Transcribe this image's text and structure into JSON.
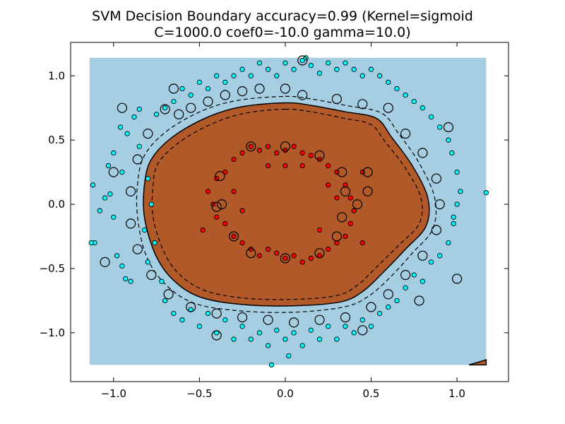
{
  "chart_data": {
    "type": "scatter",
    "title": "SVM Decision Boundary accuracy=0.99 (Kernel=sigmoid",
    "subtitle": "C=1000.0 coef0=-10.0 gamma=10.0)",
    "xlabel": "",
    "ylabel": "",
    "xlim": [
      -1.25,
      1.3
    ],
    "ylim": [
      -1.38,
      1.26
    ],
    "xticks": [
      -1.0,
      -0.5,
      0.0,
      0.5,
      1.0
    ],
    "xtick_labels": [
      "−1.0",
      "−0.5",
      "0.0",
      "0.5",
      "1.0"
    ],
    "yticks": [
      1.0,
      0.5,
      0.0,
      -0.5,
      -1.0
    ],
    "ytick_labels": [
      "1.0",
      "0.5",
      "0.0",
      "−0.5",
      "−1.0"
    ],
    "grid": false,
    "legend": "none",
    "background_extent": {
      "x": [
        -1.14,
        1.17
      ],
      "y": [
        -1.25,
        1.14
      ]
    },
    "colors": {
      "outer_class_region": "#a6cee3",
      "inner_class_region": "#b15928",
      "outer_points": "#00ffff",
      "inner_points": "#ff0000",
      "boundary": "#000000"
    },
    "decision_boundary": [
      [
        0.0,
        0.79
      ],
      [
        0.15,
        0.77
      ],
      [
        0.35,
        0.72
      ],
      [
        0.53,
        0.67
      ],
      [
        0.62,
        0.52
      ],
      [
        0.74,
        0.3
      ],
      [
        0.83,
        0.05
      ],
      [
        0.82,
        -0.17
      ],
      [
        0.7,
        -0.35
      ],
      [
        0.57,
        -0.53
      ],
      [
        0.45,
        -0.68
      ],
      [
        0.32,
        -0.76
      ],
      [
        0.05,
        -0.79
      ],
      [
        -0.25,
        -0.78
      ],
      [
        -0.5,
        -0.72
      ],
      [
        -0.66,
        -0.58
      ],
      [
        -0.76,
        -0.38
      ],
      [
        -0.82,
        -0.1
      ],
      [
        -0.82,
        0.15
      ],
      [
        -0.78,
        0.35
      ],
      [
        -0.65,
        0.53
      ],
      [
        -0.45,
        0.68
      ],
      [
        -0.25,
        0.76
      ]
    ],
    "margin_outer": [
      [
        0.0,
        0.84
      ],
      [
        0.15,
        0.82
      ],
      [
        0.35,
        0.77
      ],
      [
        0.56,
        0.71
      ],
      [
        0.66,
        0.55
      ],
      [
        0.78,
        0.32
      ],
      [
        0.87,
        0.05
      ],
      [
        0.86,
        -0.19
      ],
      [
        0.74,
        -0.38
      ],
      [
        0.61,
        -0.57
      ],
      [
        0.48,
        -0.72
      ],
      [
        0.34,
        -0.8
      ],
      [
        0.05,
        -0.84
      ],
      [
        -0.26,
        -0.83
      ],
      [
        -0.53,
        -0.77
      ],
      [
        -0.7,
        -0.62
      ],
      [
        -0.81,
        -0.4
      ],
      [
        -0.86,
        -0.1
      ],
      [
        -0.86,
        0.16
      ],
      [
        -0.82,
        0.38
      ],
      [
        -0.69,
        0.57
      ],
      [
        -0.48,
        0.73
      ],
      [
        -0.27,
        0.81
      ]
    ],
    "margin_inner": [
      [
        0.0,
        0.74
      ],
      [
        0.15,
        0.72
      ],
      [
        0.34,
        0.67
      ],
      [
        0.5,
        0.62
      ],
      [
        0.58,
        0.49
      ],
      [
        0.7,
        0.28
      ],
      [
        0.79,
        0.05
      ],
      [
        0.78,
        -0.15
      ],
      [
        0.66,
        -0.32
      ],
      [
        0.53,
        -0.49
      ],
      [
        0.42,
        -0.63
      ],
      [
        0.3,
        -0.71
      ],
      [
        0.05,
        -0.74
      ],
      [
        -0.24,
        -0.73
      ],
      [
        -0.47,
        -0.67
      ],
      [
        -0.62,
        -0.54
      ],
      [
        -0.71,
        -0.36
      ],
      [
        -0.77,
        -0.1
      ],
      [
        -0.77,
        0.14
      ],
      [
        -0.74,
        0.32
      ],
      [
        -0.61,
        0.49
      ],
      [
        -0.42,
        0.63
      ],
      [
        -0.23,
        0.71
      ]
    ],
    "corner_region": [
      [
        1.07,
        -1.25
      ],
      [
        1.17,
        -1.21
      ],
      [
        1.17,
        -1.25
      ]
    ],
    "series": [
      {
        "class": "outer",
        "points": [
          [
            -1.12,
            0.15
          ],
          [
            -1.11,
            -0.3
          ],
          [
            -1.08,
            -0.05
          ],
          [
            -1.05,
            0.05
          ],
          [
            -1.02,
            0.08
          ],
          [
            -1.0,
            -0.1
          ],
          [
            -1.03,
            0.3
          ],
          [
            -1.0,
            0.4
          ],
          [
            -0.98,
            -0.4
          ],
          [
            -0.95,
            -0.48
          ],
          [
            -0.93,
            -0.58
          ],
          [
            -0.9,
            -0.6
          ],
          [
            -0.96,
            0.6
          ],
          [
            -0.92,
            0.55
          ],
          [
            -0.88,
            0.68
          ],
          [
            -0.85,
            0.74
          ],
          [
            -0.85,
            0.45
          ],
          [
            -0.8,
            0.2
          ],
          [
            -0.78,
            0.0
          ],
          [
            -0.82,
            -0.2
          ],
          [
            -0.76,
            -0.3
          ],
          [
            -0.8,
            -0.45
          ],
          [
            -0.72,
            -0.6
          ],
          [
            -0.7,
            -0.75
          ],
          [
            -0.65,
            -0.85
          ],
          [
            -0.6,
            -0.9
          ],
          [
            -0.55,
            -0.82
          ],
          [
            -0.5,
            -0.95
          ],
          [
            -0.45,
            -0.85
          ],
          [
            -0.4,
            -1.0
          ],
          [
            -0.35,
            -0.9
          ],
          [
            -0.3,
            -1.05
          ],
          [
            -0.25,
            -0.95
          ],
          [
            -0.2,
            -1.05
          ],
          [
            -0.15,
            -1.0
          ],
          [
            -0.1,
            -1.1
          ],
          [
            -0.05,
            -0.98
          ],
          [
            0.0,
            -1.05
          ],
          [
            0.05,
            -1.0
          ],
          [
            0.1,
            -1.1
          ],
          [
            0.15,
            -0.98
          ],
          [
            0.2,
            -1.05
          ],
          [
            0.25,
            -0.95
          ],
          [
            0.3,
            -1.05
          ],
          [
            0.35,
            -0.95
          ],
          [
            0.4,
            -1.0
          ],
          [
            0.45,
            -0.9
          ],
          [
            0.5,
            -0.95
          ],
          [
            0.55,
            -0.85
          ],
          [
            0.6,
            -0.8
          ],
          [
            0.65,
            -0.75
          ],
          [
            0.7,
            -0.65
          ],
          [
            0.75,
            -0.55
          ],
          [
            0.8,
            -0.6
          ],
          [
            0.85,
            -0.45
          ],
          [
            0.9,
            -0.4
          ],
          [
            0.95,
            -0.3
          ],
          [
            0.98,
            -0.15
          ],
          [
            1.0,
            0.0
          ],
          [
            1.02,
            0.1
          ],
          [
            1.0,
            0.25
          ],
          [
            0.97,
            0.4
          ],
          [
            0.95,
            0.5
          ],
          [
            0.9,
            0.6
          ],
          [
            0.85,
            0.68
          ],
          [
            0.8,
            0.75
          ],
          [
            0.75,
            0.8
          ],
          [
            0.7,
            0.85
          ],
          [
            0.65,
            0.9
          ],
          [
            0.6,
            0.95
          ],
          [
            0.55,
            1.0
          ],
          [
            0.5,
            1.05
          ],
          [
            0.45,
            1.0
          ],
          [
            0.4,
            1.05
          ],
          [
            0.35,
            1.1
          ],
          [
            0.3,
            1.05
          ],
          [
            0.25,
            1.1
          ],
          [
            0.2,
            1.02
          ],
          [
            0.15,
            1.08
          ],
          [
            0.1,
            1.12
          ],
          [
            0.05,
            1.05
          ],
          [
            0.0,
            1.1
          ],
          [
            -0.05,
            1.0
          ],
          [
            -0.1,
            1.05
          ],
          [
            -0.15,
            1.1
          ],
          [
            -0.2,
            1.0
          ],
          [
            -0.25,
            1.05
          ],
          [
            -0.3,
            1.0
          ],
          [
            -0.35,
            0.95
          ],
          [
            -0.4,
            1.0
          ],
          [
            -0.45,
            0.9
          ],
          [
            -0.5,
            0.95
          ],
          [
            -0.55,
            0.85
          ],
          [
            -0.6,
            0.9
          ],
          [
            -0.65,
            0.8
          ],
          [
            -0.7,
            0.75
          ],
          [
            -0.75,
            0.7
          ],
          [
            1.17,
            0.09
          ],
          [
            -1.13,
            -0.3
          ],
          [
            -0.08,
            -1.25
          ],
          [
            0.02,
            -1.18
          ],
          [
            0.12,
            1.14
          ],
          [
            -0.95,
            0.25
          ],
          [
            0.98,
            -0.1
          ]
        ]
      },
      {
        "class": "inner",
        "points": [
          [
            -0.4,
            0.2
          ],
          [
            -0.35,
            0.25
          ],
          [
            -0.3,
            0.35
          ],
          [
            -0.25,
            0.4
          ],
          [
            -0.2,
            0.45
          ],
          [
            -0.15,
            0.42
          ],
          [
            -0.1,
            0.45
          ],
          [
            -0.05,
            0.4
          ],
          [
            0.0,
            0.42
          ],
          [
            0.05,
            0.45
          ],
          [
            0.1,
            0.4
          ],
          [
            0.15,
            0.38
          ],
          [
            0.2,
            0.35
          ],
          [
            0.25,
            0.3
          ],
          [
            0.3,
            0.25
          ],
          [
            0.35,
            0.15
          ],
          [
            0.38,
            0.05
          ],
          [
            0.4,
            -0.05
          ],
          [
            0.38,
            -0.15
          ],
          [
            0.35,
            -0.25
          ],
          [
            0.3,
            -0.3
          ],
          [
            0.25,
            -0.35
          ],
          [
            0.2,
            -0.4
          ],
          [
            0.15,
            -0.42
          ],
          [
            0.1,
            -0.45
          ],
          [
            0.05,
            -0.4
          ],
          [
            0.0,
            -0.42
          ],
          [
            -0.05,
            -0.38
          ],
          [
            -0.1,
            -0.35
          ],
          [
            -0.15,
            -0.4
          ],
          [
            -0.2,
            -0.35
          ],
          [
            -0.25,
            -0.3
          ],
          [
            -0.3,
            -0.25
          ],
          [
            -0.35,
            -0.15
          ],
          [
            -0.4,
            -0.1
          ],
          [
            -0.42,
            0.0
          ],
          [
            -0.45,
            0.1
          ],
          [
            -0.3,
            0.1
          ],
          [
            0.3,
            0.05
          ],
          [
            0.2,
            -0.2
          ],
          [
            -0.1,
            0.3
          ],
          [
            0.1,
            0.3
          ],
          [
            -0.25,
            -0.05
          ],
          [
            0.25,
            0.15
          ],
          [
            0.45,
            -0.3
          ],
          [
            0.45,
            0.25
          ],
          [
            -0.48,
            -0.2
          ],
          [
            0.0,
            0.3
          ]
        ]
      }
    ],
    "support_vectors": [
      [
        -0.7,
        0.74
      ],
      [
        -0.62,
        0.7
      ],
      [
        -0.55,
        0.75
      ],
      [
        -0.45,
        0.8
      ],
      [
        -0.35,
        0.85
      ],
      [
        -0.25,
        0.88
      ],
      [
        -0.15,
        0.9
      ],
      [
        0.0,
        0.9
      ],
      [
        0.1,
        0.85
      ],
      [
        0.3,
        0.82
      ],
      [
        0.45,
        0.78
      ],
      [
        0.6,
        0.75
      ],
      [
        0.7,
        0.55
      ],
      [
        0.8,
        0.4
      ],
      [
        0.88,
        0.2
      ],
      [
        0.9,
        0.0
      ],
      [
        0.88,
        -0.2
      ],
      [
        0.8,
        -0.4
      ],
      [
        0.7,
        -0.55
      ],
      [
        0.6,
        -0.7
      ],
      [
        0.5,
        -0.8
      ],
      [
        0.35,
        -0.88
      ],
      [
        0.2,
        -0.9
      ],
      [
        0.05,
        -0.92
      ],
      [
        -0.1,
        -0.9
      ],
      [
        -0.25,
        -0.88
      ],
      [
        -0.4,
        -0.85
      ],
      [
        -0.55,
        -0.8
      ],
      [
        -0.68,
        -0.7
      ],
      [
        -0.78,
        -0.55
      ],
      [
        -0.86,
        -0.35
      ],
      [
        -0.9,
        -0.15
      ],
      [
        -0.9,
        0.1
      ],
      [
        -0.86,
        0.35
      ],
      [
        -0.8,
        0.55
      ],
      [
        -0.38,
        0.22
      ],
      [
        -0.2,
        0.45
      ],
      [
        0.0,
        0.45
      ],
      [
        0.2,
        0.38
      ],
      [
        0.33,
        0.25
      ],
      [
        0.35,
        0.1
      ],
      [
        0.33,
        -0.1
      ],
      [
        0.3,
        -0.25
      ],
      [
        0.2,
        -0.38
      ],
      [
        0.0,
        -0.42
      ],
      [
        -0.2,
        -0.38
      ],
      [
        -0.3,
        -0.25
      ],
      [
        -0.4,
        -0.02
      ],
      [
        0.48,
        0.25
      ],
      [
        0.48,
        0.1
      ],
      [
        0.42,
        0.0
      ],
      [
        -0.37,
        0.0
      ],
      [
        -0.95,
        0.75
      ],
      [
        0.78,
        -0.75
      ],
      [
        1.0,
        -0.58
      ],
      [
        -1.05,
        -0.45
      ],
      [
        0.95,
        0.6
      ],
      [
        -0.65,
        0.9
      ],
      [
        0.1,
        1.12
      ],
      [
        -0.4,
        -1.02
      ],
      [
        0.45,
        -0.98
      ],
      [
        -1.0,
        0.25
      ]
    ]
  }
}
